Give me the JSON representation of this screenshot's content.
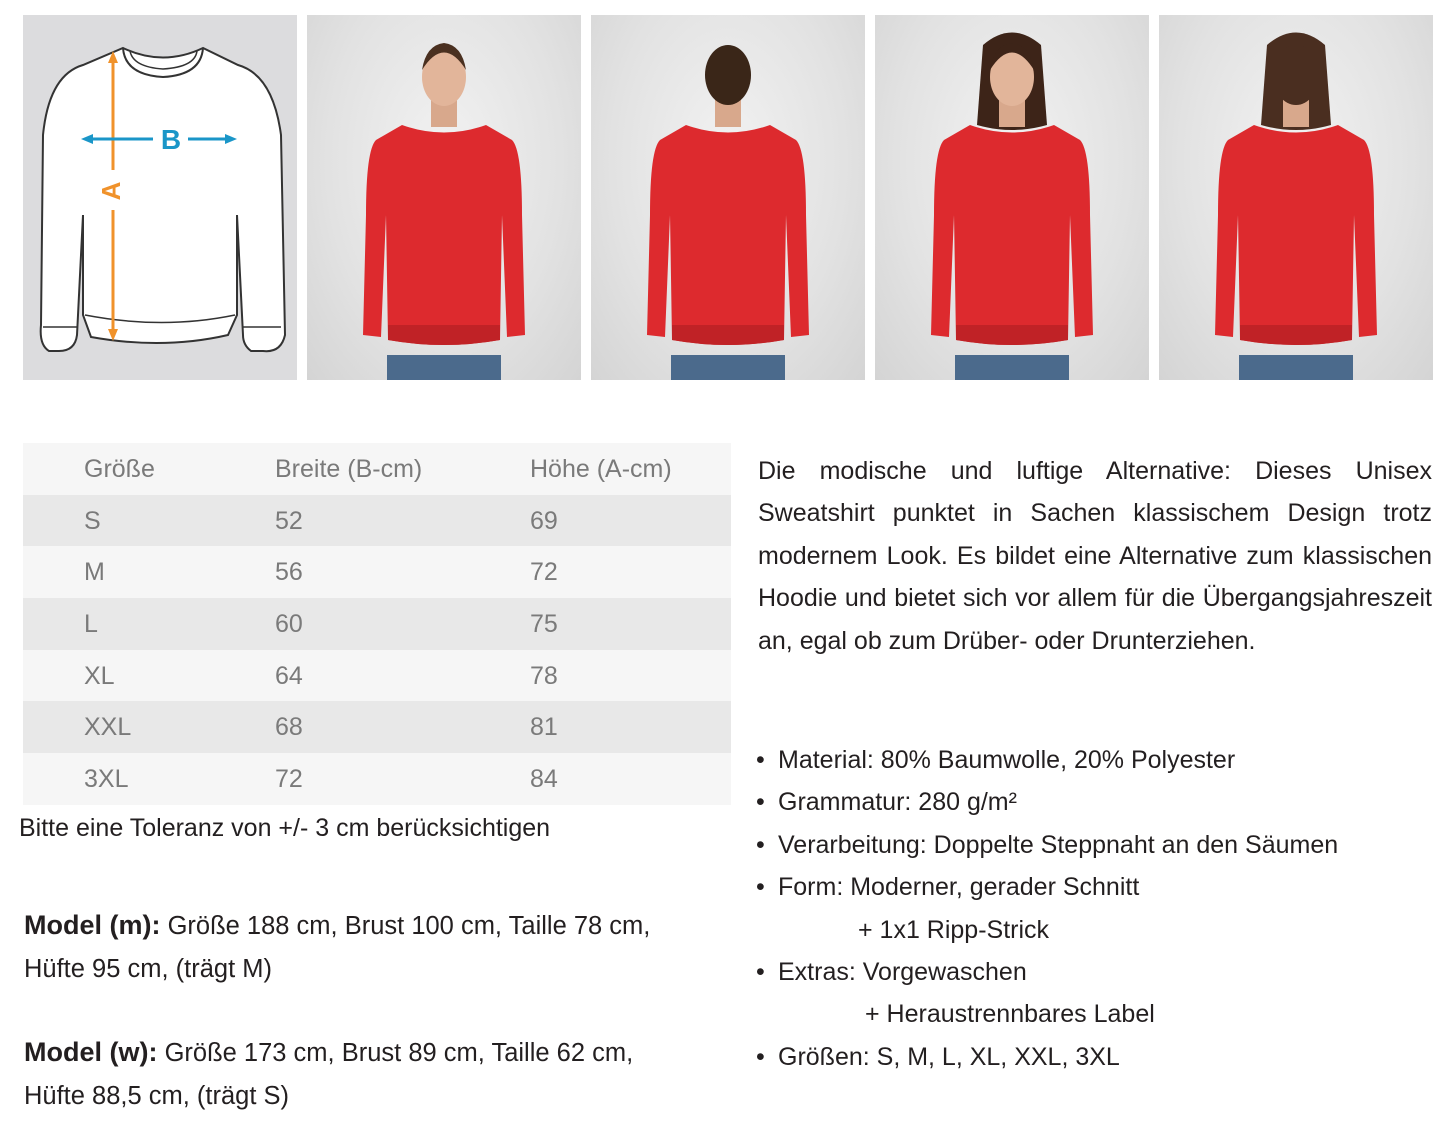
{
  "diagram": {
    "label_a": "A",
    "label_b": "B",
    "colors": {
      "a": "#f0922b",
      "b": "#1a96c8"
    }
  },
  "photos": [
    {
      "name": "photo-man-front",
      "view": "front",
      "hair": "#4a3020",
      "long_hair": false
    },
    {
      "name": "photo-man-back",
      "view": "back",
      "hair": "#3a2618",
      "long_hair": false
    },
    {
      "name": "photo-woman-front",
      "view": "front",
      "hair": "#3d2418",
      "long_hair": true
    },
    {
      "name": "photo-woman-back",
      "view": "back",
      "hair": "#4a2e20",
      "long_hair": true
    }
  ],
  "product_color": "#dd2a2e",
  "size_table": {
    "headers": [
      "Größe",
      "Breite (B-cm)",
      "Höhe (A-cm)"
    ],
    "rows": [
      [
        "S",
        "52",
        "69"
      ],
      [
        "M",
        "56",
        "72"
      ],
      [
        "L",
        "60",
        "75"
      ],
      [
        "XL",
        "64",
        "78"
      ],
      [
        "XXL",
        "68",
        "81"
      ],
      [
        "3XL",
        "72",
        "84"
      ]
    ]
  },
  "tolerance_note": "Bitte eine Toleranz von +/- 3 cm berücksichtigen",
  "models": [
    {
      "label": "Model (m):",
      "line1": " Größe 188 cm, Brust 100 cm, Taille 78 cm,",
      "line2": "Hüfte 95 cm, (trägt M)"
    },
    {
      "label": "Model (w):",
      "line1": " Größe 173 cm, Brust 89 cm, Taille 62 cm,",
      "line2": "Hüfte 88,5 cm, (trägt S)"
    }
  ],
  "description": "Die modische und luftige Alternative: Dieses Unisex Sweatshirt punktet in Sachen klassischem Design trotz modernem Look. Es bildet eine Alternative zum klassischen Hoodie und bietet sich vor allem für die Übergangsjahreszeit an, egal ob zum Drüber- oder Drunterziehen.",
  "specs": {
    "bullet": "•",
    "material": "Material: 80% Baumwolle, 20% Polyester",
    "grammage": "Grammatur: 280 g/m²",
    "processing": "Verarbeitung: Doppelte Steppnaht an den Säumen",
    "form": "Form: Moderner, gerader Schnitt",
    "form_cont": "+ 1x1 Ripp-Strick",
    "extras": "Extras: Vorgewaschen",
    "extras_cont": "+ Heraustrennbares Label",
    "sizes": "Größen:  S, M, L, XL, XXL, 3XL"
  }
}
